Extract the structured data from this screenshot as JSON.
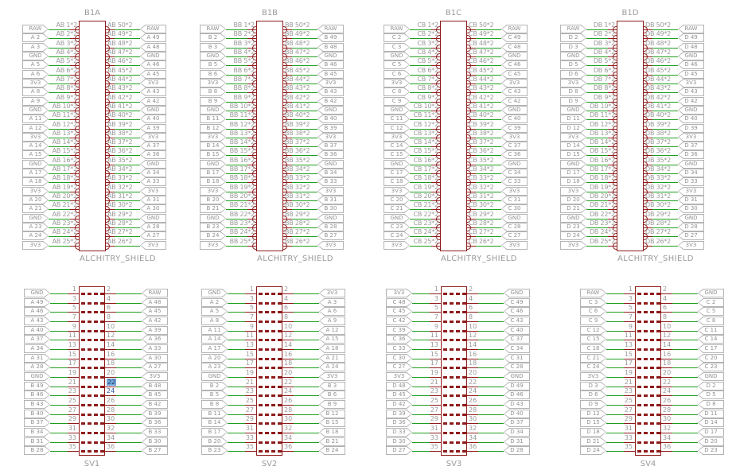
{
  "colors": {
    "component": "#8e1b1b",
    "net": "#1e9e1e",
    "text": "#9a9a9a",
    "label_border": "#b4b4b4",
    "highlight_fill": "#72a7d9",
    "highlight_text": "#2f55a4"
  },
  "shields": [
    {
      "title": "B1A",
      "subtitle": "ALCHITRY_SHIELD",
      "rows": [
        [
          "RAW",
          "AB 1*2",
          "AB 50*2",
          "RAW"
        ],
        [
          "A 2",
          "AB 2*2",
          "AB 49*2",
          "A 49"
        ],
        [
          "A 3",
          "AB 3*2",
          "AB 48*2",
          "A 48"
        ],
        [
          "GND",
          "AB 4*2",
          "AB 47*2",
          "GND"
        ],
        [
          "A 5",
          "AB 5*2",
          "AB 46*2",
          "A 46"
        ],
        [
          "A 6",
          "AB 6*2",
          "AB 45*2",
          "A 45"
        ],
        [
          "3V3",
          "AB 7*2",
          "AB 44*2",
          "3V3"
        ],
        [
          "A 8",
          "AB 8*2",
          "AB 43*2",
          "A 43"
        ],
        [
          "A 9",
          "AB 9*2",
          "AB 42*2",
          "A 42"
        ],
        [
          "GND",
          "AB 10*2",
          "AB 41*2",
          "GND"
        ],
        [
          "A 11",
          "AB 11*2",
          "AB 40*2",
          "A 40"
        ],
        [
          "A 12",
          "AB 12*2",
          "AB 39*2",
          "A 39"
        ],
        [
          "3V3",
          "AB 13*2",
          "AB 38*2",
          "3V3"
        ],
        [
          "A 14",
          "AB 14*2",
          "AB 37*2",
          "A 37"
        ],
        [
          "A 15",
          "AB 15*2",
          "AB 36*2",
          "A 36"
        ],
        [
          "GND",
          "AB 16*2",
          "AB 35*2",
          "GND"
        ],
        [
          "A 17",
          "AB 17*2",
          "AB 34*2",
          "A 34"
        ],
        [
          "A 18",
          "AB 18*2",
          "AB 33*2",
          "A 33"
        ],
        [
          "3V3",
          "AB 19*2",
          "AB 32*2",
          "3V3"
        ],
        [
          "A 20",
          "AB 20*2",
          "AB 31*2",
          "A 31"
        ],
        [
          "A 21",
          "AB 21*2",
          "AB 30*2",
          "A 30"
        ],
        [
          "GND",
          "AB 22*2",
          "AB 29*2",
          "GND"
        ],
        [
          "A 23",
          "AB 23*2",
          "AB 28*2",
          "A 28"
        ],
        [
          "A 24",
          "AB 24*2",
          "AB 27*2",
          "A 27"
        ],
        [
          "3V3",
          "AB 25*2",
          "AB 26*2",
          "3V3"
        ]
      ]
    },
    {
      "title": "B1B",
      "subtitle": "ALCHITRY_SHIELD",
      "rows": [
        [
          "RAW",
          "BB 1*2",
          "BB 50*2",
          "RAW"
        ],
        [
          "B 2",
          "BB 2*2",
          "BB 49*2",
          "B 49"
        ],
        [
          "B 3",
          "BB 3*2",
          "BB 48*2",
          "B 48"
        ],
        [
          "GND",
          "BB 4*2",
          "BB 47*2",
          "GND"
        ],
        [
          "B 5",
          "BB 5*2",
          "BB 46*2",
          "B 46"
        ],
        [
          "B 6",
          "BB 6*2",
          "BB 45*2",
          "B 45"
        ],
        [
          "3V3",
          "BB 7*2",
          "BB 44*2",
          "3V3"
        ],
        [
          "B 8",
          "BB 8*2",
          "BB 43*2",
          "B 43"
        ],
        [
          "B 9",
          "BB 9*2",
          "BB 42*2",
          "B 42"
        ],
        [
          "GND",
          "BB 10*2",
          "BB 41*2",
          "GND"
        ],
        [
          "B 11",
          "BB 11*2",
          "BB 40*2",
          "B 40"
        ],
        [
          "B 12",
          "BB 12*2",
          "BB 39*2",
          "B 39"
        ],
        [
          "3V3",
          "BB 13*2",
          "BB 38*2",
          "3V3"
        ],
        [
          "B 14",
          "BB 14*2",
          "BB 37*2",
          "B 37"
        ],
        [
          "B 15",
          "BB 15*2",
          "BB 36*2",
          "B 36"
        ],
        [
          "GND",
          "BB 16*2",
          "BB 35*2",
          "GND"
        ],
        [
          "B 17",
          "BB 17*2",
          "BB 34*2",
          "B 34"
        ],
        [
          "B 18",
          "BB 18*2",
          "BB 33*2",
          "B 33"
        ],
        [
          "3V3",
          "BB 19*2",
          "BB 32*2",
          "3V3"
        ],
        [
          "B 20",
          "BB 20*2",
          "BB 31*2",
          "B 31"
        ],
        [
          "B 21",
          "BB 21*2",
          "BB 30*2",
          "B 30"
        ],
        [
          "GND",
          "BB 22*2",
          "BB 29*2",
          "GND"
        ],
        [
          "B 23",
          "BB 23*2",
          "BB 28*2",
          "B 28"
        ],
        [
          "B 24",
          "BB 24*2",
          "BB 27*2",
          "B 27"
        ],
        [
          "3V3",
          "BB 25*2",
          "BB 26*2",
          "3V3"
        ]
      ]
    },
    {
      "title": "B1C",
      "subtitle": "ALCHITRY_SHIELD",
      "rows": [
        [
          "RAW",
          "CB 1*2",
          "CB 50*2",
          "RAW"
        ],
        [
          "C 2",
          "CB 2*2",
          "CB 49*2",
          "C 49"
        ],
        [
          "C 3",
          "CB 3*2",
          "CB 48*2",
          "C 48"
        ],
        [
          "GND",
          "CB 4*2",
          "CB 47*2",
          "GND"
        ],
        [
          "C 5",
          "CB 5*2",
          "CB 46*2",
          "C 46"
        ],
        [
          "C 6",
          "CB 6*2",
          "CB 45*2",
          "C 45"
        ],
        [
          "3V3",
          "CB 7*2",
          "CB 44*2",
          "3V3"
        ],
        [
          "C 8",
          "CB 8*2",
          "CB 43*2",
          "C 43"
        ],
        [
          "C 9",
          "CB 9*2",
          "CB 42*2",
          "C 42"
        ],
        [
          "GND",
          "CB 10*2",
          "CB 41*2",
          "GND"
        ],
        [
          "C 11",
          "CB 11*2",
          "CB 40*2",
          "C 40"
        ],
        [
          "C 12",
          "CB 12*2",
          "CB 39*2",
          "C 39"
        ],
        [
          "3V3",
          "CB 13*2",
          "CB 38*2",
          "3V3"
        ],
        [
          "C 14",
          "CB 14*2",
          "CB 37*2",
          "C 37"
        ],
        [
          "C 15",
          "CB 15*2",
          "CB 36*2",
          "C 36"
        ],
        [
          "GND",
          "CB 16*2",
          "CB 35*2",
          "GND"
        ],
        [
          "C 17",
          "CB 17*2",
          "CB 34*2",
          "C 34"
        ],
        [
          "C 18",
          "CB 18*2",
          "CB 33*2",
          "C 33"
        ],
        [
          "3V3",
          "CB 19*2",
          "CB 32*2",
          "3V3"
        ],
        [
          "C 20",
          "CB 20*2",
          "CB 31*2",
          "C 31"
        ],
        [
          "C 21",
          "CB 21*2",
          "CB 30*2",
          "C 30"
        ],
        [
          "GND",
          "CB 22*2",
          "CB 29*2",
          "GND"
        ],
        [
          "C 23",
          "CB 23*2",
          "CB 28*2",
          "C 28"
        ],
        [
          "C 24",
          "CB 24*2",
          "CB 27*2",
          "C 27"
        ],
        [
          "3V3",
          "CB 25*2",
          "CB 26*2",
          "3V3"
        ]
      ]
    },
    {
      "title": "B1D",
      "subtitle": "ALCHITRY_SHIELD",
      "rows": [
        [
          "RAW",
          "DB 1*2",
          "DB 50*2",
          "RAW"
        ],
        [
          "D 2",
          "DB 2*2",
          "DB 49*2",
          "D 49"
        ],
        [
          "D 3",
          "DB 3*2",
          "DB 48*2",
          "D 48"
        ],
        [
          "GND",
          "DB 4*2",
          "DB 47*2",
          "GND"
        ],
        [
          "D 5",
          "DB 5*2",
          "DB 46*2",
          "D 46"
        ],
        [
          "D 6",
          "DB 6*2",
          "DB 45*2",
          "D 45"
        ],
        [
          "3V3",
          "DB 7*2",
          "DB 44*2",
          "3V3"
        ],
        [
          "D 8",
          "DB 8*2",
          "DB 43*2",
          "D 43"
        ],
        [
          "D 9",
          "DB 9*2",
          "DB 42*2",
          "D 42"
        ],
        [
          "GND",
          "DB 10*2",
          "DB 41*2",
          "GND"
        ],
        [
          "D 11",
          "DB 11*2",
          "DB 40*2",
          "D 40"
        ],
        [
          "D 12",
          "DB 12*2",
          "DB 39*2",
          "D 39"
        ],
        [
          "3V3",
          "DB 13*2",
          "DB 38*2",
          "3V3"
        ],
        [
          "D 14",
          "DB 14*2",
          "DB 37*2",
          "D 37"
        ],
        [
          "D 15",
          "DB 15*2",
          "DB 36*2",
          "D 36"
        ],
        [
          "GND",
          "DB 16*2",
          "DB 35*2",
          "GND"
        ],
        [
          "D 17",
          "DB 17*2",
          "DB 34*2",
          "D 34"
        ],
        [
          "D 18",
          "DB 18*2",
          "DB 33*2",
          "D 33"
        ],
        [
          "3V3",
          "DB 19*2",
          "DB 32*2",
          "3V3"
        ],
        [
          "D 20",
          "DB 20*2",
          "DB 31*2",
          "D 31"
        ],
        [
          "D 21",
          "DB 21*2",
          "DB 30*2",
          "D 30"
        ],
        [
          "GND",
          "DB 22*2",
          "DB 29*2",
          "GND"
        ],
        [
          "D 23",
          "DB 23*2",
          "DB 28*2",
          "D 28"
        ],
        [
          "D 24",
          "DB 24*2",
          "DB 27*2",
          "D 27"
        ],
        [
          "3V3",
          "DB 25*2",
          "DB 26*2",
          "3V3"
        ]
      ]
    }
  ],
  "headers": [
    {
      "title": "SV1",
      "highlights": {
        "fill": [
          "22"
        ],
        "text": [
          "24"
        ]
      },
      "rows": [
        [
          "GND",
          "1",
          "2",
          "RAW"
        ],
        [
          "A 49",
          "3",
          "4",
          "A 48"
        ],
        [
          "A 46",
          "5",
          "6",
          "A 45"
        ],
        [
          "A 43",
          "7",
          "8",
          "A 42"
        ],
        [
          "A 40",
          "9",
          "10",
          "A 39"
        ],
        [
          "A 37",
          "11",
          "12",
          "A 36"
        ],
        [
          "A 34",
          "13",
          "14",
          "A 33"
        ],
        [
          "A 31",
          "15",
          "16",
          "A 30"
        ],
        [
          "A 28",
          "17",
          "18",
          "A 27"
        ],
        [
          "GND",
          "19",
          "20",
          "3V3"
        ],
        [
          "B 49",
          "21",
          "22",
          "B 48"
        ],
        [
          "B 46",
          "23",
          "24",
          "B 45"
        ],
        [
          "B 43",
          "25",
          "26",
          "B 42"
        ],
        [
          "B 40",
          "27",
          "28",
          "B 39"
        ],
        [
          "B 37",
          "29",
          "30",
          "B 36"
        ],
        [
          "B 34",
          "31",
          "32",
          "B 33"
        ],
        [
          "B 31",
          "33",
          "34",
          "B 30"
        ],
        [
          "B 28",
          "35",
          "36",
          "B 27"
        ]
      ]
    },
    {
      "title": "SV2",
      "highlights": {
        "fill": [],
        "text": []
      },
      "rows": [
        [
          "GND",
          "1",
          "2",
          "3V3"
        ],
        [
          "A 2",
          "3",
          "4",
          "A 3"
        ],
        [
          "A 5",
          "5",
          "6",
          "A 6"
        ],
        [
          "A 8",
          "7",
          "8",
          "A 9"
        ],
        [
          "A 11",
          "9",
          "10",
          "A 12"
        ],
        [
          "A 14",
          "11",
          "12",
          "A 15"
        ],
        [
          "A 17",
          "13",
          "14",
          "A 18"
        ],
        [
          "A 20",
          "15",
          "16",
          "A 21"
        ],
        [
          "A 23",
          "17",
          "18",
          "A 24"
        ],
        [
          "GND",
          "19",
          "20",
          "3V3"
        ],
        [
          "B 2",
          "21",
          "22",
          "B 3"
        ],
        [
          "B 5",
          "23",
          "24",
          "B 6"
        ],
        [
          "B 8",
          "25",
          "26",
          "B 9"
        ],
        [
          "B 11",
          "27",
          "28",
          "B 12"
        ],
        [
          "B 14",
          "29",
          "30",
          "B 15"
        ],
        [
          "B 17",
          "31",
          "32",
          "B 18"
        ],
        [
          "B 20",
          "33",
          "34",
          "B 21"
        ],
        [
          "B 23",
          "35",
          "36",
          "B 24"
        ]
      ]
    },
    {
      "title": "SV3",
      "highlights": {
        "fill": [],
        "text": []
      },
      "rows": [
        [
          "3V3",
          "1",
          "2",
          "GND"
        ],
        [
          "C 48",
          "3",
          "4",
          "C 49"
        ],
        [
          "C 45",
          "5",
          "6",
          "C 46"
        ],
        [
          "C 42",
          "7",
          "8",
          "C 43"
        ],
        [
          "C 39",
          "9",
          "10",
          "C 40"
        ],
        [
          "C 36",
          "11",
          "12",
          "C 37"
        ],
        [
          "C 33",
          "13",
          "14",
          "C 34"
        ],
        [
          "C 30",
          "15",
          "16",
          "C 31"
        ],
        [
          "C 27",
          "17",
          "18",
          "C 28"
        ],
        [
          "3V3",
          "19",
          "20",
          "GND"
        ],
        [
          "D 48",
          "21",
          "22",
          "D 49"
        ],
        [
          "D 45",
          "23",
          "24",
          "D 46"
        ],
        [
          "D 42",
          "25",
          "26",
          "D 43"
        ],
        [
          "D 39",
          "27",
          "28",
          "D 40"
        ],
        [
          "D 36",
          "29",
          "30",
          "D 37"
        ],
        [
          "D 33",
          "31",
          "32",
          "D 34"
        ],
        [
          "D 30",
          "33",
          "34",
          "D 31"
        ],
        [
          "D 27",
          "35",
          "36",
          "D 28"
        ]
      ]
    },
    {
      "title": "SV4",
      "highlights": {
        "fill": [],
        "text": []
      },
      "rows": [
        [
          "RAW",
          "1",
          "2",
          "GND"
        ],
        [
          "C 3",
          "3",
          "4",
          "C 2"
        ],
        [
          "C 6",
          "5",
          "6",
          "C 5"
        ],
        [
          "C 9",
          "7",
          "8",
          "C 8"
        ],
        [
          "C 12",
          "9",
          "10",
          "C 11"
        ],
        [
          "C 15",
          "11",
          "12",
          "C 14"
        ],
        [
          "C 18",
          "13",
          "14",
          "C 17"
        ],
        [
          "C 21",
          "15",
          "16",
          "C 20"
        ],
        [
          "C 24",
          "17",
          "18",
          "C 23"
        ],
        [
          "3V3",
          "19",
          "20",
          "GND"
        ],
        [
          "D 3",
          "21",
          "22",
          "D 2"
        ],
        [
          "D 6",
          "23",
          "24",
          "D 5"
        ],
        [
          "D 9",
          "25",
          "26",
          "D 8"
        ],
        [
          "D 12",
          "27",
          "28",
          "D 11"
        ],
        [
          "D 15",
          "29",
          "30",
          "D 14"
        ],
        [
          "D 18",
          "31",
          "32",
          "D 17"
        ],
        [
          "D 21",
          "33",
          "34",
          "D 20"
        ],
        [
          "D 24",
          "35",
          "36",
          "D 23"
        ]
      ]
    }
  ]
}
